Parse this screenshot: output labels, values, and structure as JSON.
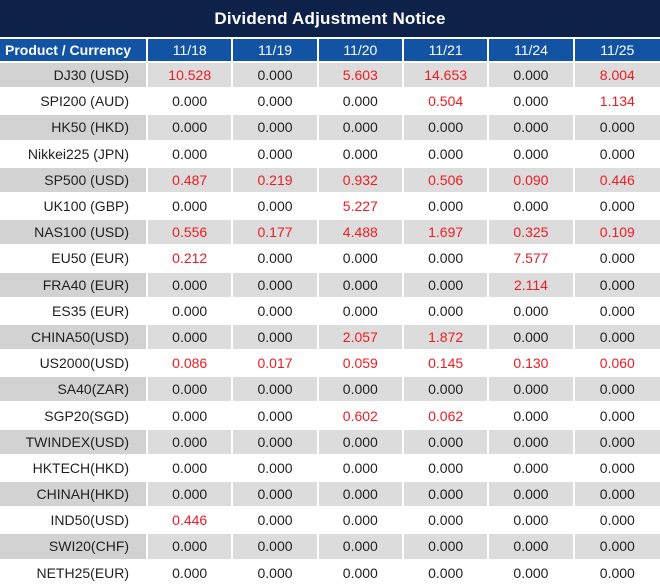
{
  "title": "Dividend Adjustment Notice",
  "colors": {
    "title_bg": "#0d2149",
    "header_bg": "#1253a4",
    "row_alt_bg": "#dcdcdc",
    "row_alt_product_bg": "#d2d2d2",
    "value_red": "#ed1c24",
    "value_black": "#1f1f1f"
  },
  "table": {
    "product_header": "Product / Currency",
    "date_columns": [
      "11/18",
      "11/19",
      "11/20",
      "11/21",
      "11/24",
      "11/25"
    ],
    "rows": [
      {
        "product": "DJ30 (USD)",
        "values": [
          "10.528",
          "0.000",
          "5.603",
          "14.653",
          "0.000",
          "8.004"
        ],
        "red": [
          true,
          false,
          true,
          true,
          false,
          true
        ]
      },
      {
        "product": "SPI200 (AUD)",
        "values": [
          "0.000",
          "0.000",
          "0.000",
          "0.504",
          "0.000",
          "1.134"
        ],
        "red": [
          false,
          false,
          false,
          true,
          false,
          true
        ]
      },
      {
        "product": "HK50 (HKD)",
        "values": [
          "0.000",
          "0.000",
          "0.000",
          "0.000",
          "0.000",
          "0.000"
        ],
        "red": [
          false,
          false,
          false,
          false,
          false,
          false
        ]
      },
      {
        "product": "Nikkei225 (JPN)",
        "values": [
          "0.000",
          "0.000",
          "0.000",
          "0.000",
          "0.000",
          "0.000"
        ],
        "red": [
          false,
          false,
          false,
          false,
          false,
          false
        ]
      },
      {
        "product": "SP500 (USD)",
        "values": [
          "0.487",
          "0.219",
          "0.932",
          "0.506",
          "0.090",
          "0.446"
        ],
        "red": [
          true,
          true,
          true,
          true,
          true,
          true
        ]
      },
      {
        "product": "UK100 (GBP)",
        "values": [
          "0.000",
          "0.000",
          "5.227",
          "0.000",
          "0.000",
          "0.000"
        ],
        "red": [
          false,
          false,
          true,
          false,
          false,
          false
        ]
      },
      {
        "product": "NAS100 (USD)",
        "values": [
          "0.556",
          "0.177",
          "4.488",
          "1.697",
          "0.325",
          "0.109"
        ],
        "red": [
          true,
          true,
          true,
          true,
          true,
          true
        ]
      },
      {
        "product": "EU50 (EUR)",
        "values": [
          "0.212",
          "0.000",
          "0.000",
          "0.000",
          "7.577",
          "0.000"
        ],
        "red": [
          true,
          false,
          false,
          false,
          true,
          false
        ]
      },
      {
        "product": "FRA40 (EUR)",
        "values": [
          "0.000",
          "0.000",
          "0.000",
          "0.000",
          "2.114",
          "0.000"
        ],
        "red": [
          false,
          false,
          false,
          false,
          true,
          false
        ]
      },
      {
        "product": "ES35 (EUR)",
        "values": [
          "0.000",
          "0.000",
          "0.000",
          "0.000",
          "0.000",
          "0.000"
        ],
        "red": [
          false,
          false,
          false,
          false,
          false,
          false
        ]
      },
      {
        "product": "CHINA50(USD)",
        "values": [
          "0.000",
          "0.000",
          "2.057",
          "1.872",
          "0.000",
          "0.000"
        ],
        "red": [
          false,
          false,
          true,
          true,
          false,
          false
        ]
      },
      {
        "product": "US2000(USD)",
        "values": [
          "0.086",
          "0.017",
          "0.059",
          "0.145",
          "0.130",
          "0.060"
        ],
        "red": [
          true,
          true,
          true,
          true,
          true,
          true
        ]
      },
      {
        "product": "SA40(ZAR)",
        "values": [
          "0.000",
          "0.000",
          "0.000",
          "0.000",
          "0.000",
          "0.000"
        ],
        "red": [
          false,
          false,
          false,
          false,
          false,
          false
        ]
      },
      {
        "product": "SGP20(SGD)",
        "values": [
          "0.000",
          "0.000",
          "0.602",
          "0.062",
          "0.000",
          "0.000"
        ],
        "red": [
          false,
          false,
          true,
          true,
          false,
          false
        ]
      },
      {
        "product": "TWINDEX(USD)",
        "values": [
          "0.000",
          "0.000",
          "0.000",
          "0.000",
          "0.000",
          "0.000"
        ],
        "red": [
          false,
          false,
          false,
          false,
          false,
          false
        ]
      },
      {
        "product": "HKTECH(HKD)",
        "values": [
          "0.000",
          "0.000",
          "0.000",
          "0.000",
          "0.000",
          "0.000"
        ],
        "red": [
          false,
          false,
          false,
          false,
          false,
          false
        ]
      },
      {
        "product": "CHINAH(HKD)",
        "values": [
          "0.000",
          "0.000",
          "0.000",
          "0.000",
          "0.000",
          "0.000"
        ],
        "red": [
          false,
          false,
          false,
          false,
          false,
          false
        ]
      },
      {
        "product": "IND50(USD)",
        "values": [
          "0.446",
          "0.000",
          "0.000",
          "0.000",
          "0.000",
          "0.000"
        ],
        "red": [
          true,
          false,
          false,
          false,
          false,
          false
        ]
      },
      {
        "product": "SWI20(CHF)",
        "values": [
          "0.000",
          "0.000",
          "0.000",
          "0.000",
          "0.000",
          "0.000"
        ],
        "red": [
          false,
          false,
          false,
          false,
          false,
          false
        ]
      },
      {
        "product": "NETH25(EUR)",
        "values": [
          "0.000",
          "0.000",
          "0.000",
          "0.000",
          "0.000",
          "0.000"
        ],
        "red": [
          false,
          false,
          false,
          false,
          false,
          false
        ]
      }
    ]
  }
}
